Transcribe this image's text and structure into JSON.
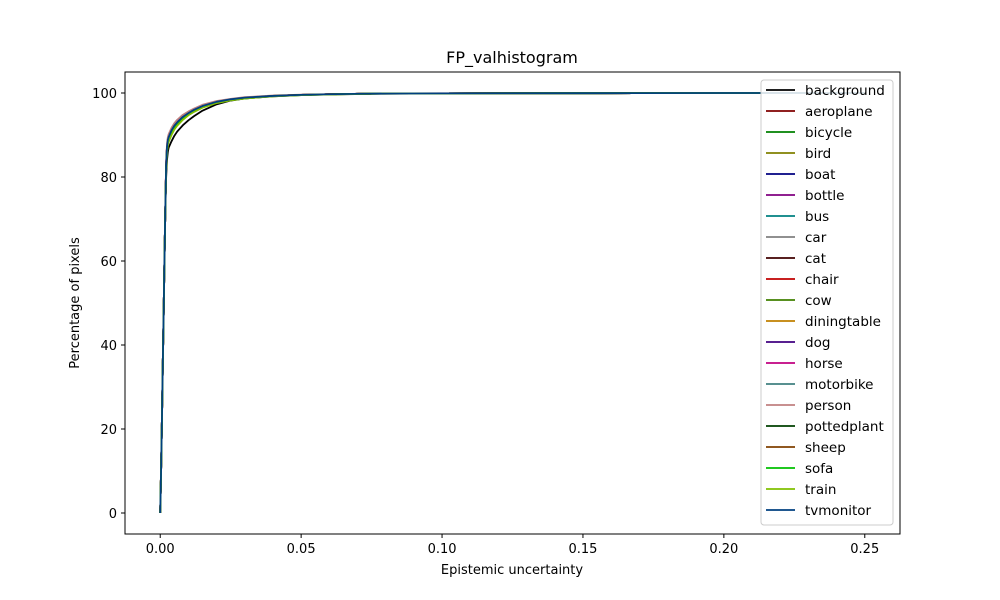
{
  "chart_data": {
    "type": "line",
    "title": "FP_valhistogram",
    "xlabel": "Epistemic uncertainty",
    "ylabel": "Percentage of pixels",
    "xlim": [
      -0.0125,
      0.2625
    ],
    "ylim": [
      -5,
      105
    ],
    "xticks": [
      "0.00",
      "0.05",
      "0.10",
      "0.15",
      "0.20",
      "0.25"
    ],
    "yticks": [
      "0",
      "20",
      "40",
      "60",
      "80",
      "100"
    ],
    "grid": false,
    "legend_position": "top-right",
    "x": [
      0.0,
      0.0003,
      0.0006,
      0.0009,
      0.0012,
      0.0015,
      0.0018,
      0.0021,
      0.0024,
      0.0027,
      0.003,
      0.004,
      0.005,
      0.006,
      0.008,
      0.01,
      0.012,
      0.015,
      0.02,
      0.025,
      0.03,
      0.04,
      0.05,
      0.06,
      0.075,
      0.1,
      0.15,
      0.2,
      0.25
    ],
    "series": [
      {
        "name": "background",
        "color": "#000000",
        "values": [
          0,
          10,
          22,
          35,
          47,
          60,
          72,
          80,
          84,
          86,
          87,
          88.5,
          89.8,
          90.8,
          92.3,
          93.5,
          94.5,
          95.8,
          97.3,
          98.2,
          98.7,
          99.2,
          99.5,
          99.65,
          99.8,
          99.9,
          99.95,
          100,
          100
        ]
      },
      {
        "name": "aeroplane",
        "color": "#800000",
        "values": [
          0,
          10,
          22,
          35,
          47,
          60,
          72,
          83,
          87,
          88.8,
          89.5,
          91,
          92.2,
          93,
          94.3,
          95.2,
          96,
          96.9,
          97.9,
          98.5,
          98.9,
          99.3,
          99.55,
          99.7,
          99.85,
          99.92,
          99.96,
          100,
          100
        ]
      },
      {
        "name": "bicycle",
        "color": "#008000",
        "values": [
          0,
          10,
          22,
          35,
          47,
          60,
          72,
          82,
          86.5,
          88.3,
          89,
          90.6,
          91.8,
          92.7,
          94,
          95,
          95.8,
          96.7,
          97.8,
          98.4,
          98.8,
          99.3,
          99.55,
          99.7,
          99.85,
          99.92,
          99.96,
          100,
          100
        ]
      },
      {
        "name": "bird",
        "color": "#808000",
        "values": [
          0,
          10,
          22,
          35,
          47,
          60,
          72,
          82.5,
          86.8,
          88.5,
          89.2,
          90.8,
          92,
          92.8,
          94.1,
          95.1,
          95.9,
          96.8,
          97.8,
          98.4,
          98.8,
          99.3,
          99.55,
          99.7,
          99.85,
          99.92,
          99.96,
          100,
          100
        ]
      },
      {
        "name": "boat",
        "color": "#000080",
        "values": [
          0,
          10,
          22,
          35,
          47,
          60,
          72,
          82.5,
          87,
          88.7,
          89.4,
          91,
          92.1,
          92.9,
          94.2,
          95.1,
          95.9,
          96.8,
          97.8,
          98.4,
          98.8,
          99.3,
          99.55,
          99.7,
          99.85,
          99.92,
          99.96,
          100,
          100
        ]
      },
      {
        "name": "bottle",
        "color": "#800080",
        "values": [
          0,
          10,
          22,
          35,
          47,
          60,
          72,
          83,
          87.3,
          89,
          89.7,
          91.2,
          92.4,
          93.2,
          94.4,
          95.3,
          96.1,
          97,
          97.9,
          98.5,
          98.9,
          99.3,
          99.55,
          99.7,
          99.85,
          99.92,
          99.96,
          100,
          100
        ]
      },
      {
        "name": "bus",
        "color": "#008080",
        "values": [
          0,
          10,
          22,
          35,
          47,
          60,
          72,
          82.5,
          87,
          88.7,
          89.4,
          91,
          92.1,
          92.9,
          94.2,
          95.1,
          95.9,
          96.8,
          97.8,
          98.4,
          98.8,
          99.3,
          99.55,
          99.7,
          99.85,
          99.92,
          99.96,
          100,
          100
        ]
      },
      {
        "name": "car",
        "color": "#808080",
        "values": [
          0,
          10,
          22,
          35,
          47,
          60,
          72,
          82.8,
          87.1,
          88.8,
          89.5,
          91.1,
          92.2,
          93,
          94.3,
          95.2,
          96,
          96.9,
          97.9,
          98.5,
          98.9,
          99.3,
          99.55,
          99.7,
          99.85,
          99.92,
          99.96,
          100,
          100
        ]
      },
      {
        "name": "cat",
        "color": "#400000",
        "values": [
          0,
          10,
          22,
          35,
          47,
          60,
          72,
          82.5,
          86.9,
          88.6,
          89.3,
          90.9,
          92,
          92.8,
          94.1,
          95.1,
          95.9,
          96.8,
          97.8,
          98.4,
          98.8,
          99.3,
          99.55,
          99.7,
          99.85,
          99.92,
          99.96,
          100,
          100
        ]
      },
      {
        "name": "chair",
        "color": "#c00000",
        "values": [
          0,
          10,
          22,
          35,
          47,
          60,
          72,
          83,
          87.2,
          88.9,
          89.6,
          91.1,
          92.3,
          93.1,
          94.3,
          95.2,
          96,
          96.9,
          97.9,
          98.5,
          98.9,
          99.3,
          99.55,
          99.7,
          99.85,
          99.92,
          99.96,
          100,
          100
        ]
      },
      {
        "name": "cow",
        "color": "#408000",
        "values": [
          0,
          10,
          22,
          35,
          47,
          60,
          72,
          82.5,
          86.8,
          88.5,
          89.2,
          90.8,
          92,
          92.8,
          94.1,
          95.1,
          95.9,
          96.8,
          97.8,
          98.4,
          98.8,
          99.3,
          99.55,
          99.7,
          99.85,
          99.92,
          99.96,
          100,
          100
        ]
      },
      {
        "name": "diningtable",
        "color": "#c08000",
        "values": [
          0,
          10,
          22,
          35,
          47,
          60,
          72,
          82.8,
          87.1,
          88.8,
          89.5,
          91.1,
          92.2,
          93,
          94.3,
          95.2,
          96,
          96.9,
          97.9,
          98.5,
          98.9,
          99.3,
          99.55,
          99.7,
          99.85,
          99.92,
          99.96,
          100,
          100
        ]
      },
      {
        "name": "dog",
        "color": "#400080",
        "values": [
          0,
          10,
          22,
          35,
          47,
          60,
          72,
          82.5,
          86.9,
          88.6,
          89.3,
          90.9,
          92,
          92.8,
          94.1,
          95.1,
          95.9,
          96.8,
          97.8,
          98.4,
          98.8,
          99.3,
          99.55,
          99.7,
          99.85,
          99.92,
          99.96,
          100,
          100
        ]
      },
      {
        "name": "horse",
        "color": "#c00080",
        "values": [
          0,
          10,
          22,
          35,
          47,
          60,
          72,
          83.2,
          87.4,
          89.1,
          89.8,
          91.3,
          92.4,
          93.2,
          94.4,
          95.3,
          96.1,
          97,
          97.9,
          98.5,
          98.9,
          99.3,
          99.55,
          99.7,
          99.85,
          99.92,
          99.96,
          100,
          100
        ]
      },
      {
        "name": "motorbike",
        "color": "#408080",
        "values": [
          0,
          10,
          22,
          35,
          47,
          60,
          72,
          82.7,
          87,
          88.7,
          89.4,
          91,
          92.1,
          92.9,
          94.2,
          95.1,
          95.9,
          96.8,
          97.8,
          98.4,
          98.8,
          99.3,
          99.55,
          99.7,
          99.85,
          99.92,
          99.96,
          100,
          100
        ]
      },
      {
        "name": "person",
        "color": "#c08080",
        "values": [
          0,
          10,
          22,
          35,
          47,
          60,
          72,
          83.5,
          87.8,
          89.5,
          90.2,
          91.7,
          92.8,
          93.6,
          94.8,
          95.6,
          96.3,
          97.2,
          98.1,
          98.6,
          99,
          99.4,
          99.6,
          99.72,
          99.86,
          99.93,
          99.97,
          100,
          100
        ]
      },
      {
        "name": "pottedplant",
        "color": "#004000",
        "values": [
          0,
          10,
          22,
          35,
          47,
          60,
          72,
          82.5,
          86.8,
          88.5,
          89.2,
          90.8,
          92,
          92.8,
          94.1,
          95.1,
          95.9,
          96.8,
          97.8,
          98.4,
          98.8,
          99.3,
          99.55,
          99.7,
          99.85,
          99.92,
          99.96,
          100,
          100
        ]
      },
      {
        "name": "sheep",
        "color": "#804000",
        "values": [
          0,
          10,
          22,
          35,
          47,
          60,
          72,
          82.5,
          86.8,
          88.5,
          89.2,
          90.8,
          92,
          92.8,
          94.1,
          95.1,
          95.9,
          96.8,
          97.8,
          98.4,
          98.8,
          99.3,
          99.55,
          99.7,
          99.85,
          99.92,
          99.96,
          100,
          100
        ]
      },
      {
        "name": "sofa",
        "color": "#00c000",
        "values": [
          0,
          10,
          22,
          35,
          47,
          60,
          72,
          82.2,
          86.6,
          88.3,
          89,
          90.5,
          91.7,
          92.5,
          93.9,
          94.9,
          95.7,
          96.7,
          97.7,
          98.3,
          98.7,
          99.25,
          99.5,
          99.68,
          99.84,
          99.92,
          99.96,
          100,
          100
        ]
      },
      {
        "name": "train",
        "color": "#80c000",
        "values": [
          0,
          10,
          22,
          35,
          47,
          60,
          72,
          81.5,
          85.8,
          87.6,
          88.4,
          90,
          91.3,
          92.2,
          93.6,
          94.7,
          95.5,
          96.5,
          97.6,
          98.25,
          98.7,
          99.2,
          99.5,
          99.66,
          99.83,
          99.91,
          99.96,
          100,
          100
        ]
      },
      {
        "name": "tvmonitor",
        "color": "#004080",
        "values": [
          0,
          10,
          22,
          35,
          47,
          60,
          72,
          82.8,
          87.1,
          88.8,
          89.5,
          91.1,
          92.2,
          93,
          94.3,
          95.2,
          96,
          96.9,
          97.9,
          98.5,
          98.9,
          99.3,
          99.55,
          99.7,
          99.85,
          99.92,
          99.96,
          100,
          100
        ]
      }
    ]
  }
}
